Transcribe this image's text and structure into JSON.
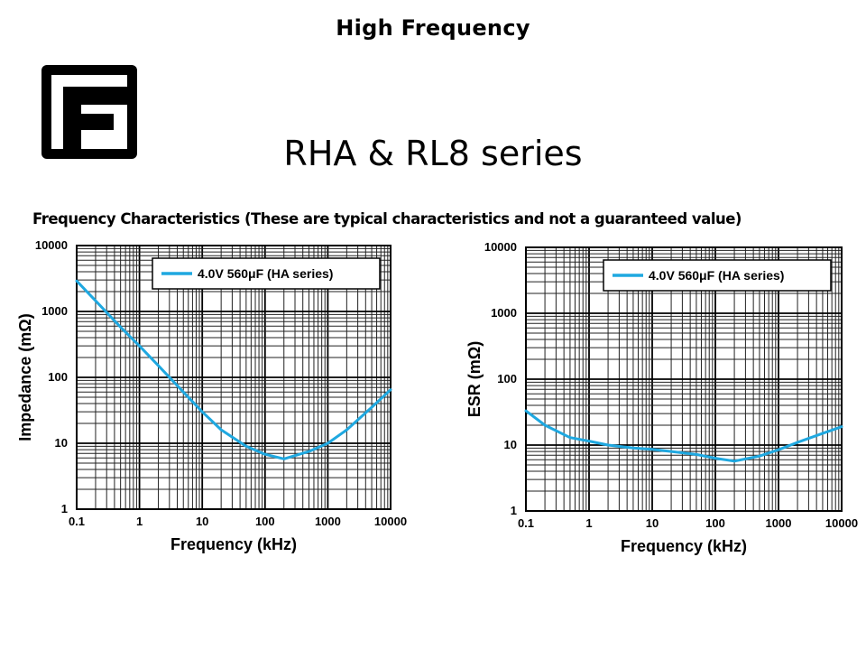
{
  "header": {
    "title": "High Frequency",
    "logo_letter": "F",
    "series_title": "RHA & RL8 series",
    "subtitle": "Frequency Characteristics (These are typical characteristics and not a guaranteed value)"
  },
  "chart_data": [
    {
      "type": "line",
      "xlabel": "Frequency (kHz)",
      "ylabel": "Impedance (mΩ)",
      "xscale": "log",
      "yscale": "log",
      "xlim": [
        0.1,
        10000
      ],
      "ylim": [
        1,
        10000
      ],
      "x_ticks": [
        "0.1",
        "1",
        "10",
        "100",
        "1000",
        "10000"
      ],
      "y_ticks": [
        "1",
        "10",
        "100",
        "1000",
        "10000"
      ],
      "grid": true,
      "legend": "top-right",
      "color": "#1fa8e0",
      "series": [
        {
          "name": "4.0V 560μF (HA series)",
          "x": [
            0.1,
            0.2,
            0.5,
            1,
            2,
            5,
            10,
            20,
            50,
            100,
            200,
            500,
            1000,
            2000,
            5000,
            10000
          ],
          "y": [
            2900,
            1450,
            580,
            300,
            150,
            60,
            30,
            16,
            9,
            6.8,
            5.8,
            7.5,
            10,
            16,
            35,
            65
          ]
        }
      ]
    },
    {
      "type": "line",
      "xlabel": "Frequency (kHz)",
      "ylabel": "ESR  (mΩ)",
      "xscale": "log",
      "yscale": "log",
      "xlim": [
        0.1,
        10000
      ],
      "ylim": [
        1,
        10000
      ],
      "x_ticks": [
        "0.1",
        "1",
        "10",
        "100",
        "1000",
        "10000"
      ],
      "y_ticks": [
        "1",
        "10",
        "100",
        "1000",
        "10000"
      ],
      "grid": true,
      "legend": "top-right",
      "color": "#1fa8e0",
      "series": [
        {
          "name": "4.0V 560μF (HA series)",
          "x": [
            0.1,
            0.2,
            0.5,
            1,
            2,
            5,
            10,
            20,
            50,
            100,
            200,
            500,
            1000,
            2000,
            5000,
            10000
          ],
          "y": [
            33,
            20,
            13,
            11.5,
            10,
            9,
            8.6,
            8,
            7.2,
            6.3,
            5.7,
            6.8,
            8.5,
            11,
            15,
            19
          ]
        }
      ]
    }
  ]
}
